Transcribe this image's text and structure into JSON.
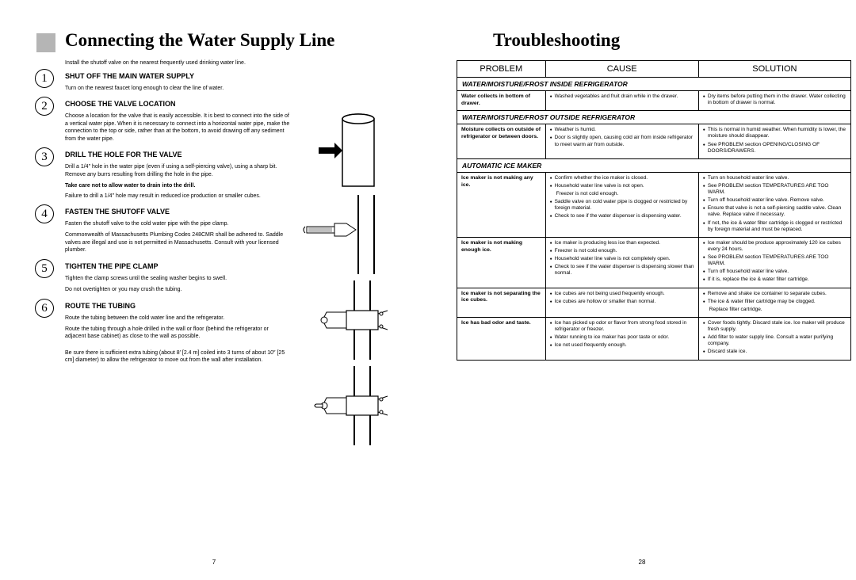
{
  "accent_color": "#b5b5b5",
  "left": {
    "title": "Connecting the Water Supply Line",
    "intro": "Install the shutoff valve on the nearest frequently used drinking water line.",
    "page_num": "7",
    "steps": [
      {
        "num": "1",
        "title": "SHUT OFF THE MAIN WATER SUPPLY",
        "body": [
          "Turn on the nearest faucet long enough to clear the line of water."
        ]
      },
      {
        "num": "2",
        "title": "CHOOSE THE VALVE LOCATION",
        "body": [
          "Choose a location for the valve that is easily accessible. It is best to connect into the side of a vertical water pipe. When it is necessary to connect into a horizontal water pipe, make the connection to the top or side, rather than at the bottom, to avoid drawing off any sediment from the water pipe."
        ]
      },
      {
        "num": "3",
        "title": "DRILL THE HOLE FOR THE VALVE",
        "body": [
          "Drill a 1/4″ hole in the water pipe (even if using a self-piercing valve), using a sharp bit. Remove any burrs resulting from drilling the hole in the pipe."
        ],
        "bold": "Take care not to allow water to drain into the drill.",
        "body2": [
          "Failure to drill a 1/4″ hole may result in reduced ice production or smaller cubes."
        ]
      },
      {
        "num": "4",
        "title": "FASTEN THE SHUTOFF VALVE",
        "body": [
          "Fasten the shutoff valve to the cold water pipe with the pipe clamp.",
          "Commonwealth of Massachusetts Plumbing Codes 248CMR shall be adhered to. Saddle valves are illegal and use is not permitted in Massachusetts. Consult with your licensed plumber."
        ]
      },
      {
        "num": "5",
        "title": "TIGHTEN THE PIPE CLAMP",
        "body": [
          "Tighten the clamp screws until the sealing washer begins to swell.",
          "Do not overtighten or you may crush the tubing."
        ]
      },
      {
        "num": "6",
        "title": "ROUTE THE TUBING",
        "body": [
          "Route the tubing between the cold water line and the refrigerator.",
          "Route the tubing through a hole drilled in the wall or floor (behind the refrigerator or adjacent base cabinet) as close to the wall as possible.",
          "",
          "Be sure there is sufficient extra tubing (about 8′ [2.4 m] coiled into 3 turns of about 10″ [25 cm] diameter) to allow the refrigerator to move out from the wall after installation."
        ]
      }
    ]
  },
  "right": {
    "title": "Troubleshooting",
    "page_num": "28",
    "headers": {
      "problem": "PROBLEM",
      "cause": "CAUSE",
      "solution": "SOLUTION"
    },
    "sections": [
      {
        "label": "WATER/MOISTURE/FROST INSIDE REFRIGERATOR",
        "rows": [
          {
            "problem": "Water collects in bottom of drawer.",
            "cause": [
              {
                "b": true,
                "t": "Washed vegetables and fruit drain while in the drawer."
              }
            ],
            "solution": [
              {
                "b": true,
                "t": "Dry items before putting them in the drawer. Water collecting in bottom of drawer is normal."
              }
            ]
          }
        ]
      },
      {
        "label": "WATER/MOISTURE/FROST OUTSIDE REFRIGERATOR",
        "rows": [
          {
            "problem": "Moisture collects on outside of refrigerator or between doors.",
            "cause": [
              {
                "b": true,
                "t": "Weather is humid."
              },
              {
                "b": true,
                "t": "Door is slightly open, causing cold air from inside refrigerator to meet warm air from outside."
              }
            ],
            "solution": [
              {
                "b": true,
                "t": "This is normal in humid weather. When humidity is lower, the moisture should disappear."
              },
              {
                "b": true,
                "t": "See PROBLEM section OPENING/CLOSING OF DOORS/DRAWERS."
              }
            ]
          }
        ]
      },
      {
        "label": "AUTOMATIC ICE MAKER",
        "rows": [
          {
            "problem": "Ice maker is not making any ice.",
            "cause": [
              {
                "b": true,
                "t": "Confirm whether the ice maker is closed."
              },
              {
                "b": true,
                "t": "Household water line valve is not open."
              },
              {
                "b": false,
                "t": "Freezer is not cold enough."
              },
              {
                "b": true,
                "t": "Saddle valve on cold water pipe is clogged or restricted by foreign material."
              },
              {
                "b": true,
                "t": "Check to see if the water dispenser is dispensing water."
              }
            ],
            "solution": [
              {
                "b": true,
                "t": "Turn on household water line valve."
              },
              {
                "b": true,
                "t": "See PROBLEM section TEMPERATURES ARE TOO WARM."
              },
              {
                "b": true,
                "t": "Turn off household water line valve. Remove valve."
              },
              {
                "b": true,
                "t": "Ensure that valve is not a self-piercing saddle valve. Clean valve. Replace valve if necessary."
              },
              {
                "b": true,
                "t": "If not, the ice & water filter cartridge is clogged or restricted by foreign material and must be replaced."
              }
            ]
          },
          {
            "problem": "Ice maker is not making enough ice.",
            "cause": [
              {
                "b": true,
                "t": "Ice maker is producing less ice than expected."
              },
              {
                "b": true,
                "t": "Freezer is not cold enough."
              },
              {
                "b": true,
                "t": "Household water line valve is not completely open."
              },
              {
                "b": true,
                "t": "Check to see if the water dispenser is dispensing slower than normal."
              }
            ],
            "solution": [
              {
                "b": true,
                "t": "Ice maker should be produce approximately 120 ice cubes every 24 hours."
              },
              {
                "b": true,
                "t": "See PROBLEM section TEMPERATURES ARE TOO WARM."
              },
              {
                "b": true,
                "t": "Turn off household water line valve."
              },
              {
                "b": true,
                "t": "If it is, replace the ice & water filter cartridge."
              }
            ]
          },
          {
            "problem": "Ice maker is not separating the ice cubes.",
            "cause": [
              {
                "b": true,
                "t": "Ice cubes are not being used frequently enough."
              },
              {
                "b": true,
                "t": "Ice cubes are hollow or smaller than normal."
              }
            ],
            "solution": [
              {
                "b": true,
                "t": "Remove and shake ice container to separate cubes."
              },
              {
                "b": true,
                "t": "The ice & water filter cartridge may be clogged."
              },
              {
                "b": false,
                "t": "Replace filter cartridge."
              }
            ]
          },
          {
            "problem": "Ice has bad odor and taste.",
            "cause": [
              {
                "b": true,
                "t": "Ice has picked up odor or flavor from strong food stored in refrigerator or freezer."
              },
              {
                "b": true,
                "t": "Water running to ice maker has poor taste or odor."
              },
              {
                "b": true,
                "t": "Ice not used frequently enough."
              }
            ],
            "solution": [
              {
                "b": true,
                "t": "Cover foods tightly. Discard stale ice. Ice maker will produce fresh supply."
              },
              {
                "b": true,
                "t": "Add filter to water supply line. Consult a water purifying company."
              },
              {
                "b": true,
                "t": "Discard stale ice."
              }
            ]
          }
        ]
      }
    ]
  }
}
